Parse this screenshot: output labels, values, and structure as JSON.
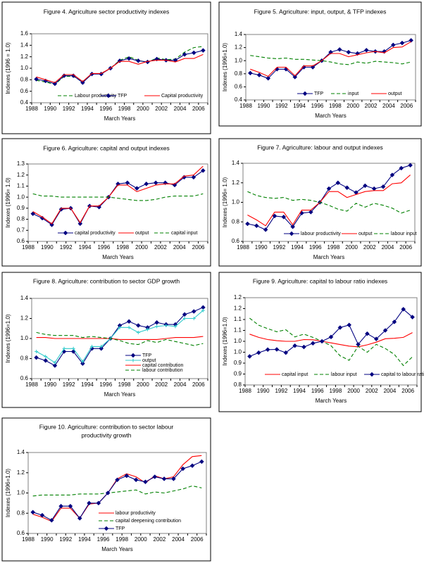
{
  "chart_data": [
    {
      "type": "line",
      "title": [
        "Figure 4. Agriculture sector productivity indexes"
      ],
      "xlabel": "March Years",
      "ylabel": "Indexes (1996 = 1.0)",
      "ylim": [
        0.4,
        1.6
      ],
      "yticks": [
        0.4,
        0.6,
        0.8,
        1.0,
        1.2,
        1.4,
        1.6
      ],
      "ytick_labels": [
        "0.4",
        "0.6",
        "0.8",
        "1.0",
        "1.2",
        "1.4",
        "1.6"
      ],
      "categories": [
        1988,
        1989,
        1990,
        1991,
        1992,
        1993,
        1994,
        1995,
        1996,
        1997,
        1998,
        1999,
        2000,
        2001,
        2002,
        2003,
        2004,
        2005,
        2006
      ],
      "xtick_labels": [
        "1988",
        "1990",
        "1992",
        "1994",
        "1996",
        "1998",
        "2000",
        "2002",
        "2004",
        "2006"
      ],
      "legend": "bottom",
      "series": [
        {
          "name": "Labour productivity",
          "color": "#008000",
          "dash": true,
          "marker": false,
          "values": [
            0.79,
            0.76,
            0.72,
            0.86,
            0.86,
            0.76,
            0.9,
            0.91,
            1.0,
            1.14,
            1.2,
            1.14,
            1.1,
            1.18,
            1.15,
            1.16,
            1.28,
            1.36,
            1.38
          ]
        },
        {
          "name": "TFP",
          "color": "#000080",
          "dash": false,
          "marker": true,
          "values": [
            0.81,
            0.78,
            0.73,
            0.87,
            0.87,
            0.75,
            0.9,
            0.9,
            1.0,
            1.13,
            1.17,
            1.13,
            1.11,
            1.16,
            1.14,
            1.14,
            1.24,
            1.27,
            1.31
          ]
        },
        {
          "name": "Capital productivity",
          "color": "#ff0000",
          "dash": false,
          "marker": false,
          "values": [
            0.85,
            0.8,
            0.75,
            0.89,
            0.89,
            0.77,
            0.91,
            0.91,
            1.0,
            1.12,
            1.12,
            1.07,
            1.12,
            1.14,
            1.14,
            1.11,
            1.17,
            1.17,
            1.24
          ]
        }
      ]
    },
    {
      "type": "line",
      "title": [
        "Figure 5. Agriculture: input, output, & TFP indexes"
      ],
      "xlabel": "March Years",
      "ylabel": "Indexes (1996=1.0)",
      "ylim": [
        0.4,
        1.4
      ],
      "yticks": [
        0.4,
        0.6,
        0.8,
        1.0,
        1.2,
        1.4
      ],
      "ytick_labels": [
        "0.4",
        "0.6",
        "0.8",
        "1.0",
        "1.2",
        "1.4"
      ],
      "categories": [
        1988,
        1989,
        1990,
        1991,
        1992,
        1993,
        1994,
        1995,
        1996,
        1997,
        1998,
        1999,
        2000,
        2001,
        2002,
        2003,
        2004,
        2005,
        2006
      ],
      "xtick_labels": [
        "1988",
        "1990",
        "1992",
        "1994",
        "1996",
        "1998",
        "2000",
        "2002",
        "2004",
        "2006"
      ],
      "legend": "bottom",
      "series": [
        {
          "name": "TFP",
          "color": "#000080",
          "dash": false,
          "marker": true,
          "values": [
            0.81,
            0.78,
            0.73,
            0.87,
            0.87,
            0.75,
            0.9,
            0.9,
            1.0,
            1.13,
            1.17,
            1.13,
            1.11,
            1.16,
            1.14,
            1.14,
            1.24,
            1.27,
            1.31
          ]
        },
        {
          "name": "input",
          "color": "#008000",
          "dash": true,
          "marker": false,
          "values": [
            1.08,
            1.06,
            1.04,
            1.03,
            1.04,
            1.02,
            1.02,
            1.01,
            1.0,
            0.98,
            0.95,
            0.94,
            0.98,
            0.96,
            0.99,
            0.98,
            0.97,
            0.95,
            0.98
          ]
        },
        {
          "name": "output",
          "color": "#ff0000",
          "dash": false,
          "marker": false,
          "values": [
            0.87,
            0.82,
            0.76,
            0.9,
            0.9,
            0.77,
            0.92,
            0.92,
            1.0,
            1.11,
            1.11,
            1.06,
            1.09,
            1.12,
            1.14,
            1.12,
            1.2,
            1.21,
            1.29
          ]
        }
      ]
    },
    {
      "type": "line",
      "title": [
        "Figure 6. Agriculture: capital and output indexes"
      ],
      "xlabel": "March Years",
      "ylabel": "Indexes (1996= 1.0)",
      "ylim": [
        0.6,
        1.3
      ],
      "yticks": [
        0.6,
        0.7,
        0.8,
        0.9,
        1.0,
        1.1,
        1.2,
        1.3
      ],
      "ytick_labels": [
        "0.6",
        "0.7",
        "0.8",
        "0.9",
        "1.0",
        "1.1",
        "1.2",
        "1.3"
      ],
      "categories": [
        1988,
        1989,
        1990,
        1991,
        1992,
        1993,
        1994,
        1995,
        1996,
        1997,
        1998,
        1999,
        2000,
        2001,
        2002,
        2003,
        2004,
        2005,
        2006
      ],
      "xtick_labels": [
        "1988",
        "1990",
        "1992",
        "1994",
        "1996",
        "1998",
        "2000",
        "2002",
        "2004",
        "2006"
      ],
      "legend": "bottom",
      "series": [
        {
          "name": "capital productivity",
          "color": "#000080",
          "dash": false,
          "marker": true,
          "values": [
            0.85,
            0.81,
            0.75,
            0.89,
            0.9,
            0.76,
            0.92,
            0.91,
            1.0,
            1.12,
            1.13,
            1.08,
            1.12,
            1.13,
            1.13,
            1.11,
            1.18,
            1.18,
            1.24
          ]
        },
        {
          "name": "output",
          "color": "#ff0000",
          "dash": false,
          "marker": false,
          "values": [
            0.87,
            0.82,
            0.76,
            0.9,
            0.9,
            0.77,
            0.92,
            0.92,
            1.0,
            1.11,
            1.11,
            1.05,
            1.08,
            1.11,
            1.12,
            1.12,
            1.19,
            1.2,
            1.28
          ]
        },
        {
          "name": "capital input",
          "color": "#008000",
          "dash": true,
          "marker": false,
          "values": [
            1.03,
            1.01,
            1.01,
            1.0,
            1.0,
            1.0,
            1.0,
            1.0,
            1.0,
            0.99,
            0.98,
            0.97,
            0.97,
            0.98,
            1.0,
            1.01,
            1.01,
            1.01,
            1.03
          ]
        }
      ]
    },
    {
      "type": "line",
      "title": [
        "Figure 7. Agriculture: labour and output indexes"
      ],
      "xlabel": "March Years",
      "ylabel": "Indexes (1996= 1.0)",
      "ylim": [
        0.6,
        1.4
      ],
      "yticks": [
        0.6,
        0.8,
        1.0,
        1.2,
        1.4
      ],
      "ytick_labels": [
        "0.6",
        "0.8",
        "1.0",
        "1.2",
        "1.4"
      ],
      "categories": [
        1988,
        1989,
        1990,
        1991,
        1992,
        1993,
        1994,
        1995,
        1996,
        1997,
        1998,
        1999,
        2000,
        2001,
        2002,
        2003,
        2004,
        2005,
        2006
      ],
      "xtick_labels": [
        "1988",
        "1990",
        "1992",
        "1994",
        "1996",
        "1998",
        "2000",
        "2002",
        "2004",
        "2006"
      ],
      "legend": "bottom",
      "series": [
        {
          "name": "labour productivity",
          "color": "#000080",
          "dash": false,
          "marker": true,
          "values": [
            0.78,
            0.76,
            0.72,
            0.86,
            0.85,
            0.75,
            0.89,
            0.9,
            1.0,
            1.14,
            1.2,
            1.15,
            1.1,
            1.17,
            1.14,
            1.16,
            1.28,
            1.35,
            1.38
          ]
        },
        {
          "name": "output",
          "color": "#ff0000",
          "dash": false,
          "marker": false,
          "values": [
            0.87,
            0.82,
            0.76,
            0.9,
            0.9,
            0.77,
            0.92,
            0.92,
            1.0,
            1.11,
            1.11,
            1.05,
            1.08,
            1.11,
            1.12,
            1.12,
            1.19,
            1.2,
            1.28
          ]
        },
        {
          "name": "labour input",
          "color": "#008000",
          "dash": true,
          "marker": false,
          "values": [
            1.11,
            1.07,
            1.05,
            1.04,
            1.05,
            1.02,
            1.03,
            1.02,
            1.0,
            0.97,
            0.93,
            0.91,
            0.99,
            0.95,
            0.99,
            0.97,
            0.94,
            0.89,
            0.92
          ]
        }
      ]
    },
    {
      "type": "line",
      "title": [
        "Figure 8. Agriculture: contribution to sector GDP growth"
      ],
      "xlabel": "March Years",
      "ylabel": "Indexes (1996=1.0)",
      "ylim": [
        0.6,
        1.4
      ],
      "yticks": [
        0.6,
        0.8,
        1.0,
        1.2,
        1.4
      ],
      "ytick_labels": [
        "0.6",
        "0.8",
        "1.0",
        "1.2",
        "1.4"
      ],
      "categories": [
        1988,
        1989,
        1990,
        1991,
        1992,
        1993,
        1994,
        1995,
        1996,
        1997,
        1998,
        1999,
        2000,
        2001,
        2002,
        2003,
        2004,
        2005,
        2006
      ],
      "xtick_labels": [
        "1988",
        "1990",
        "1992",
        "1994",
        "1996",
        "1998",
        "2000",
        "2002",
        "2004",
        "2006"
      ],
      "legend": "inside-right",
      "series": [
        {
          "name": "TFP",
          "color": "#000080",
          "dash": false,
          "marker": true,
          "values": [
            0.81,
            0.78,
            0.73,
            0.87,
            0.87,
            0.75,
            0.9,
            0.9,
            1.0,
            1.13,
            1.17,
            1.13,
            1.11,
            1.16,
            1.14,
            1.14,
            1.24,
            1.27,
            1.31
          ]
        },
        {
          "name": "output",
          "color": "#33cccc",
          "dash": false,
          "marker": "cross",
          "values": [
            0.87,
            0.82,
            0.76,
            0.9,
            0.9,
            0.77,
            0.92,
            0.92,
            1.0,
            1.11,
            1.11,
            1.06,
            1.09,
            1.12,
            1.13,
            1.12,
            1.2,
            1.2,
            1.28
          ]
        },
        {
          "name": "capital contribution",
          "color": "#ff0000",
          "dash": false,
          "marker": false,
          "values": [
            1.01,
            1.01,
            1.0,
            1.0,
            1.0,
            1.0,
            1.0,
            1.0,
            1.0,
            0.99,
            0.99,
            0.99,
            0.99,
            0.99,
            1.0,
            1.01,
            1.01,
            1.01,
            1.02
          ]
        },
        {
          "name": "labour contribution",
          "color": "#008000",
          "dash": true,
          "marker": false,
          "values": [
            1.06,
            1.04,
            1.03,
            1.03,
            1.03,
            1.01,
            1.02,
            1.01,
            1.0,
            0.98,
            0.95,
            0.94,
            0.98,
            0.96,
            0.99,
            0.97,
            0.95,
            0.93,
            0.95
          ]
        }
      ]
    },
    {
      "type": "line",
      "title": [
        "Figure 9. Agriculture: capital to labour ratio indexes"
      ],
      "xlabel": "March Years",
      "ylabel": "Indexes (1996=1.0)",
      "ylim": [
        0.8,
        1.2
      ],
      "yticks": [
        0.8,
        0.85,
        0.9,
        0.95,
        1.0,
        1.05,
        1.1,
        1.15,
        1.2
      ],
      "ytick_labels": [
        "0.8",
        "0.9",
        "0.9",
        "1.0",
        "1.0",
        "1.1",
        "1.1",
        "1.2",
        "1.2"
      ],
      "categories": [
        1988,
        1989,
        1990,
        1991,
        1992,
        1993,
        1994,
        1995,
        1996,
        1997,
        1998,
        1999,
        2000,
        2001,
        2002,
        2003,
        2004,
        2005,
        2006
      ],
      "xtick_labels": [
        "1988",
        "1990",
        "1992",
        "1994",
        "1996",
        "1998",
        "2000",
        "2002",
        "2004",
        "2006"
      ],
      "legend": "bottom",
      "series": [
        {
          "name": "capital input",
          "color": "#ff0000",
          "dash": false,
          "marker": false,
          "values": [
            1.033,
            1.018,
            1.008,
            1.003,
            1.0,
            1.0,
            1.008,
            1.007,
            1.0,
            0.993,
            0.985,
            0.978,
            0.975,
            0.984,
            0.996,
            1.012,
            1.014,
            1.018,
            1.04
          ]
        },
        {
          "name": "labour input",
          "color": "#008000",
          "dash": true,
          "marker": false,
          "values": [
            1.106,
            1.074,
            1.058,
            1.044,
            1.053,
            1.02,
            1.033,
            1.018,
            1.0,
            0.98,
            0.934,
            0.913,
            0.977,
            0.95,
            0.986,
            0.967,
            0.94,
            0.889,
            0.929
          ]
        },
        {
          "name": "capital to labour ratio",
          "color": "#000080",
          "dash": false,
          "marker": true,
          "values": [
            0.931,
            0.948,
            0.962,
            0.963,
            0.948,
            0.98,
            0.974,
            0.991,
            1.0,
            1.02,
            1.063,
            1.075,
            0.986,
            1.035,
            1.011,
            1.05,
            1.089,
            1.147,
            1.111
          ]
        }
      ]
    },
    {
      "type": "line",
      "title": [
        "Figure 10. Agriculture: contribution to sector labour",
        "productivity growth"
      ],
      "xlabel": "March Years",
      "ylabel": "Indexes (1996=1.0)",
      "ylim": [
        0.6,
        1.4
      ],
      "yticks": [
        0.6,
        0.8,
        1.0,
        1.2,
        1.4
      ],
      "ytick_labels": [
        "0.6",
        "0.8",
        "1.0",
        "1.2",
        "1.4"
      ],
      "categories": [
        1988,
        1989,
        1990,
        1991,
        1992,
        1993,
        1994,
        1995,
        1996,
        1997,
        1998,
        1999,
        2000,
        2001,
        2002,
        2003,
        2004,
        2005,
        2006
      ],
      "xtick_labels": [
        "1988",
        "1990",
        "1992",
        "1994",
        "1996",
        "1998",
        "2000",
        "2002",
        "2004",
        "2006"
      ],
      "legend": "inside-right",
      "series": [
        {
          "name": "labour productivity",
          "color": "#ff0000",
          "dash": false,
          "marker": false,
          "values": [
            0.79,
            0.76,
            0.72,
            0.85,
            0.85,
            0.75,
            0.89,
            0.9,
            1.0,
            1.14,
            1.19,
            1.16,
            1.1,
            1.17,
            1.14,
            1.16,
            1.28,
            1.36,
            1.37
          ]
        },
        {
          "name": "capital deepening contribution",
          "color": "#008000",
          "dash": true,
          "marker": false,
          "values": [
            0.97,
            0.98,
            0.98,
            0.98,
            0.98,
            0.99,
            0.99,
            0.99,
            1.0,
            1.01,
            1.02,
            1.03,
            0.99,
            1.01,
            1.0,
            1.02,
            1.04,
            1.07,
            1.05
          ]
        },
        {
          "name": "TFP",
          "color": "#000080",
          "dash": false,
          "marker": true,
          "values": [
            0.81,
            0.78,
            0.73,
            0.87,
            0.87,
            0.75,
            0.9,
            0.9,
            1.0,
            1.13,
            1.17,
            1.13,
            1.11,
            1.16,
            1.14,
            1.14,
            1.24,
            1.27,
            1.31
          ]
        }
      ]
    }
  ]
}
